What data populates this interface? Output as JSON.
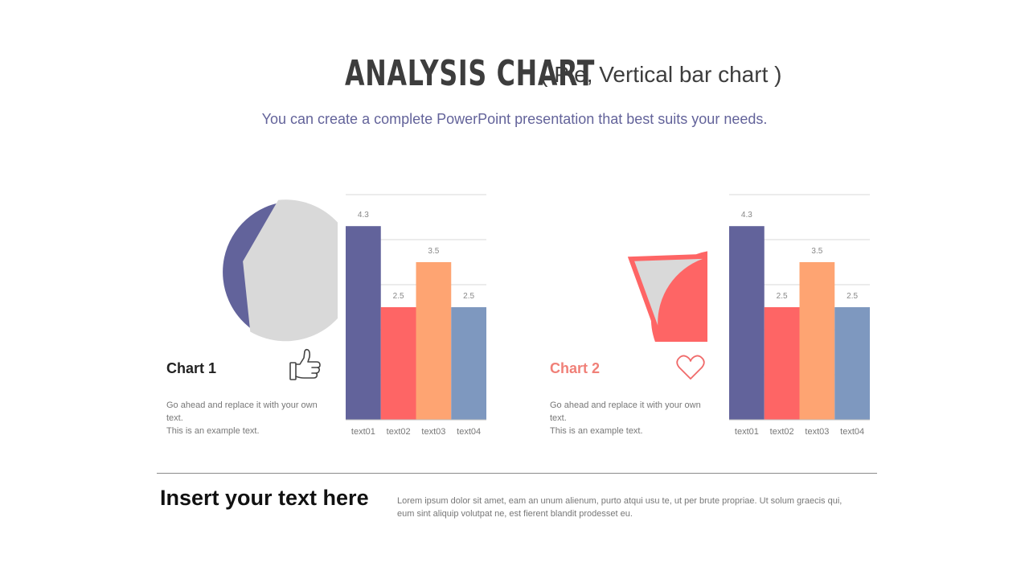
{
  "header": {
    "title": "ANALYSIS CHART",
    "title_suffix": "( Pie, Vertical bar chart )",
    "subtitle": "You can create a complete PowerPoint presentation that best suits your needs."
  },
  "panels": [
    {
      "label": "Chart  1",
      "description_line1": "Go ahead  and replace  it with your own text.",
      "description_line2": "This is an example  text.",
      "icon": "thumbs-up-icon",
      "label_color": "#222222"
    },
    {
      "label": "Chart  2",
      "description_line1": "Go ahead  and replace  it with your own text.",
      "description_line2": "This is an example  text.",
      "icon": "heart-icon",
      "label_color": "#f08078"
    }
  ],
  "footer": {
    "heading": "Insert your text here",
    "body": "Lorem  ipsum  dolor sit amet,  eam  an unum  alienum,  purto  atqui  usu te,  ut per brute  propriae.  Ut solum  graecis  qui, eum sint aliquip volutpat ne, est fierent  blandit prodesset  eu."
  },
  "colors": {
    "purple": "#62639b",
    "red": "#fe6565",
    "orange": "#fea472",
    "blue": "#7e98bf",
    "gray": "#d9d9d9"
  },
  "chart_data": [
    {
      "type": "pie",
      "slices": [
        {
          "label": "40%",
          "value": 40,
          "color": "#62639b"
        },
        {
          "value": 60,
          "color": "#d9d9d9"
        }
      ]
    },
    {
      "type": "bar",
      "categories": [
        "text01",
        "text02",
        "text03",
        "text04"
      ],
      "values": [
        4.3,
        2.5,
        3.5,
        2.5
      ],
      "data_labels": [
        "4.3",
        "2.5",
        "3.5",
        "2.5"
      ],
      "colors": [
        "#62639b",
        "#fe6565",
        "#fea472",
        "#7e98bf"
      ],
      "ylim": [
        0,
        5
      ],
      "grid": true
    },
    {
      "type": "pie",
      "slices": [
        {
          "label": "80%",
          "value": 80,
          "color": "#fe6565"
        },
        {
          "value": 20,
          "color": "#d9d9d9"
        }
      ]
    },
    {
      "type": "bar",
      "categories": [
        "text01",
        "text02",
        "text03",
        "text04"
      ],
      "values": [
        4.3,
        2.5,
        3.5,
        2.5
      ],
      "data_labels": [
        "4.3",
        "2.5",
        "3.5",
        "2.5"
      ],
      "colors": [
        "#62639b",
        "#fe6565",
        "#fea472",
        "#7e98bf"
      ],
      "ylim": [
        0,
        5
      ],
      "grid": true
    }
  ]
}
